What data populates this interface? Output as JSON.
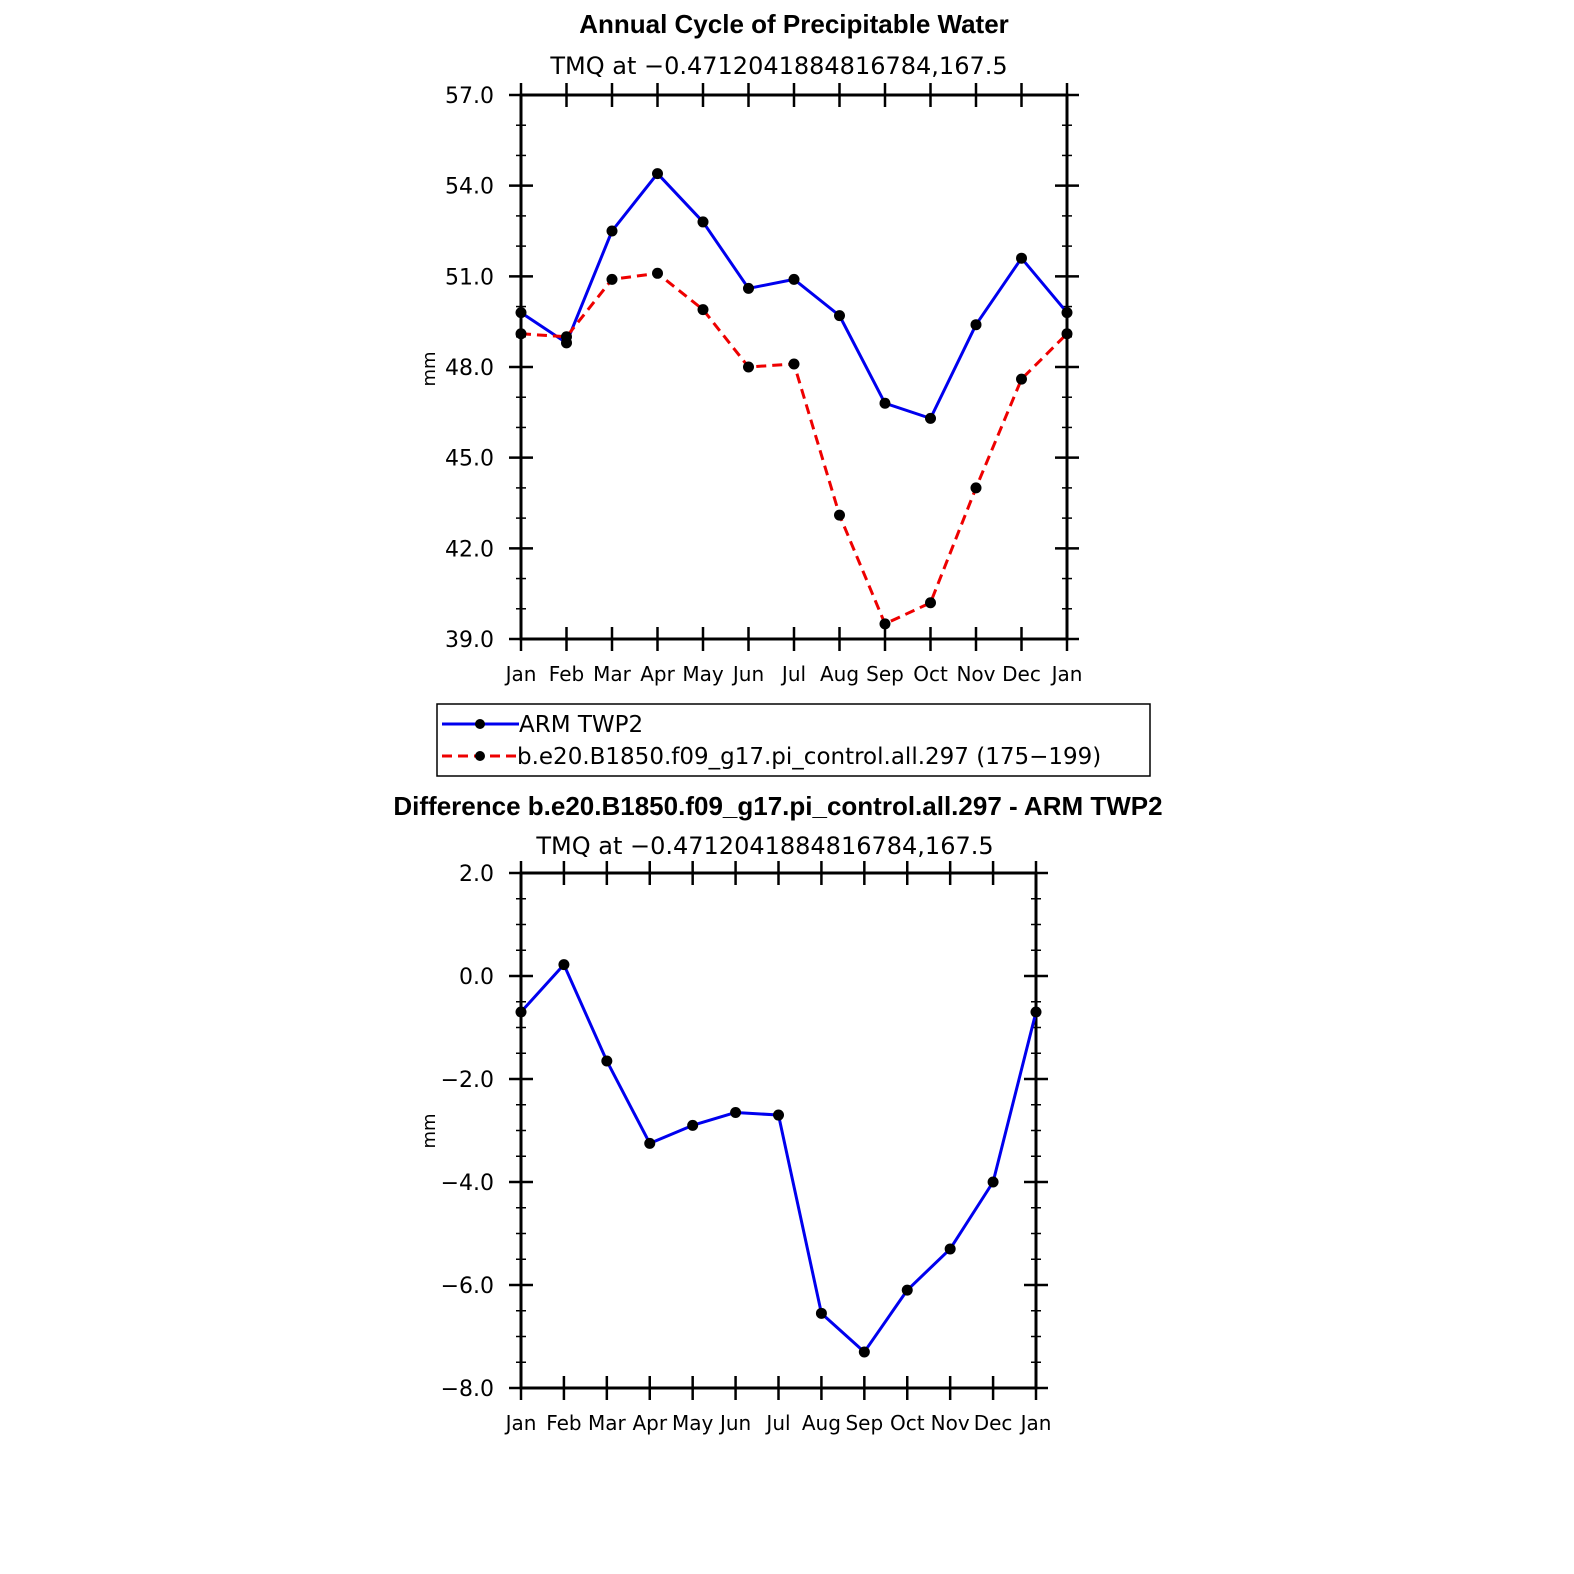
{
  "chart_data": [
    {
      "type": "line",
      "title": "Annual Cycle of Precipitable Water",
      "subtitle": "TMQ at −0.4712041884816784,167.5",
      "ylabel": "mm",
      "ylim": [
        39.0,
        57.0
      ],
      "yticks": [
        "39.0",
        "42.0",
        "45.0",
        "48.0",
        "51.0",
        "54.0",
        "57.0"
      ],
      "categories": [
        "Jan",
        "Feb",
        "Mar",
        "Apr",
        "May",
        "Jun",
        "Jul",
        "Aug",
        "Sep",
        "Oct",
        "Nov",
        "Dec",
        "Jan"
      ],
      "series": [
        {
          "name": "ARM  TWP2",
          "color": "#0000ee",
          "dash": "solid",
          "values": [
            49.8,
            48.8,
            52.5,
            54.4,
            52.8,
            50.6,
            50.9,
            49.7,
            46.8,
            46.3,
            49.4,
            51.6,
            49.8
          ]
        },
        {
          "name": "b.e20.B1850.f09_g17.pi_control.all.297 (175−199)",
          "color": "#ee0000",
          "dash": "dashed",
          "values": [
            49.1,
            49.0,
            50.9,
            51.1,
            49.9,
            48.0,
            48.1,
            43.1,
            39.5,
            40.2,
            44.0,
            47.6,
            49.1
          ]
        }
      ],
      "legend": "below",
      "grid": false
    },
    {
      "type": "line",
      "title": "Difference b.e20.B1850.f09_g17.pi_control.all.297 - ARM TWP2",
      "subtitle": "TMQ at −0.4712041884816784,167.5",
      "ylabel": "mm",
      "ylim": [
        -8.0,
        2.0
      ],
      "yticks": [
        "−8.0",
        "−6.0",
        "−4.0",
        "−2.0",
        "0.0",
        "2.0"
      ],
      "categories": [
        "Jan",
        "Feb",
        "Mar",
        "Apr",
        "May",
        "Jun",
        "Jul",
        "Aug",
        "Sep",
        "Oct",
        "Nov",
        "Dec",
        "Jan"
      ],
      "series": [
        {
          "color": "#0000ee",
          "dash": "solid",
          "values": [
            -0.7,
            0.22,
            -1.65,
            -3.25,
            -2.9,
            -2.65,
            -2.7,
            -6.55,
            -7.3,
            -6.1,
            -5.3,
            -4.0,
            -0.7
          ]
        }
      ],
      "grid": false
    }
  ]
}
